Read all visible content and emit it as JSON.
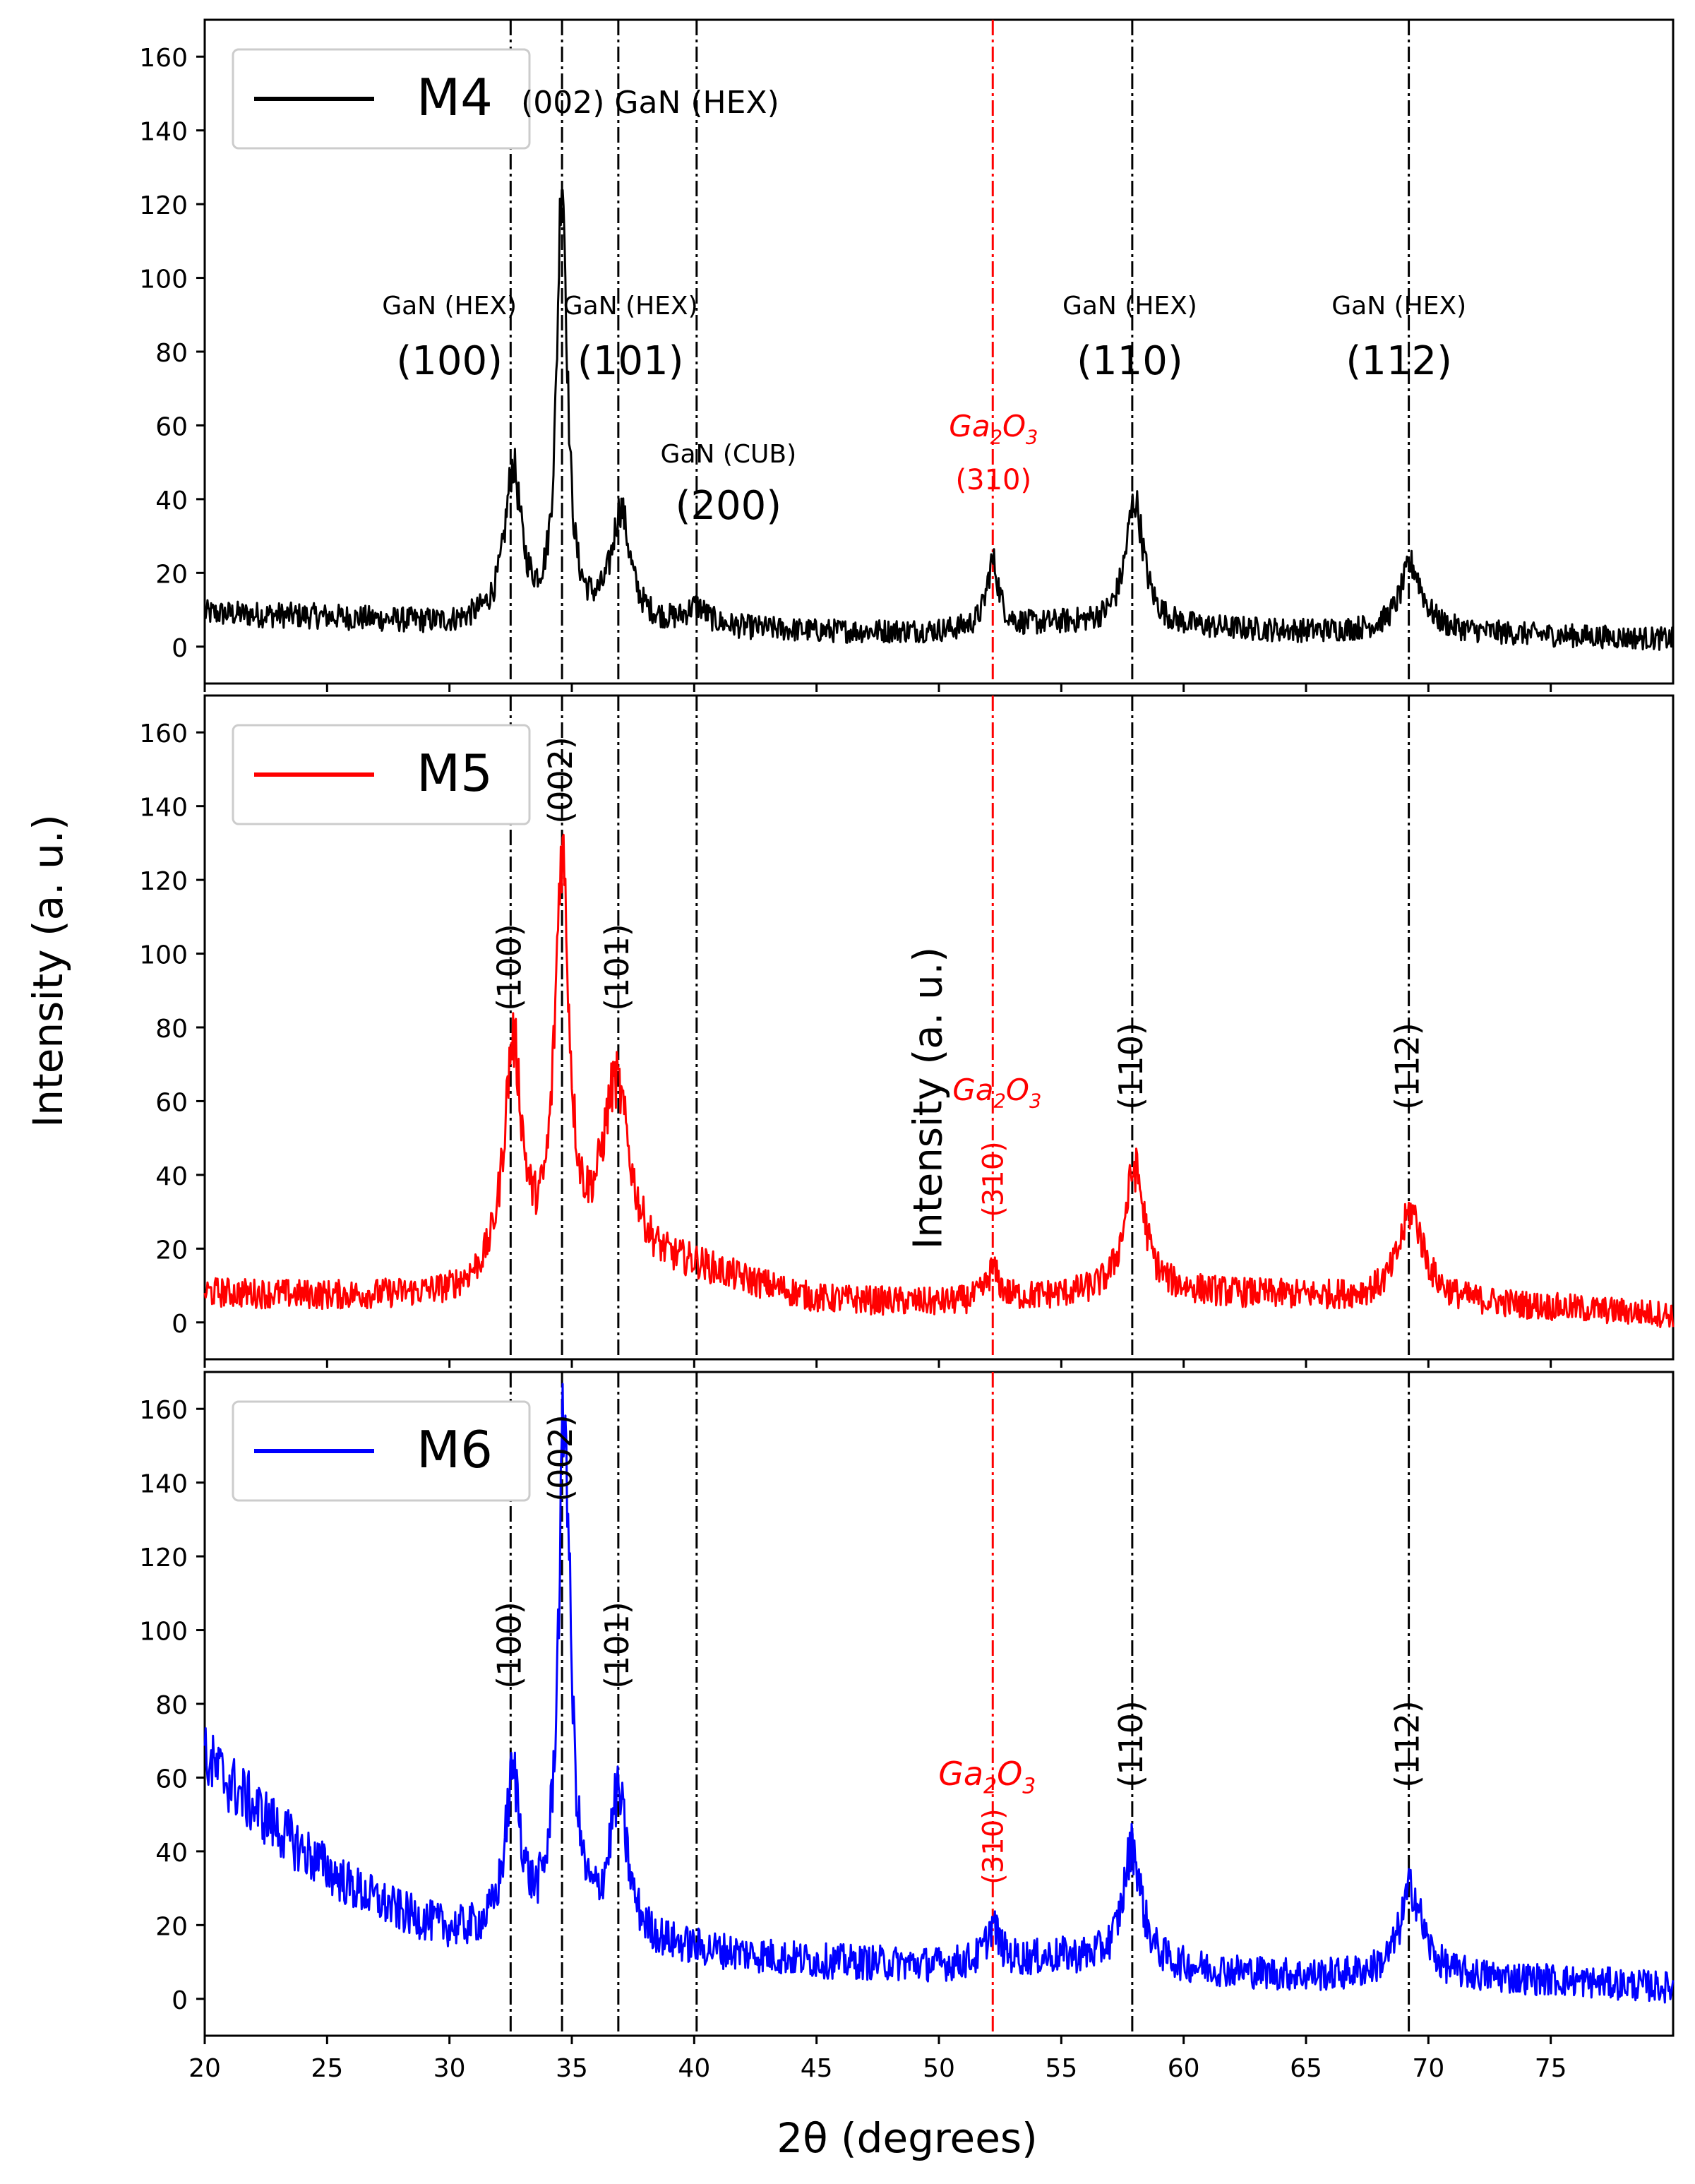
{
  "chart_data": {
    "type": "line",
    "title": "",
    "xlabel": "2θ (degrees)",
    "ylabel": "Intensity (a. u.)",
    "stray_ylabel": "Intensity (a. u.)",
    "xlim": [
      20,
      80
    ],
    "ylim": [
      -10,
      170
    ],
    "xticks": [
      20,
      25,
      30,
      35,
      40,
      45,
      50,
      55,
      60,
      65,
      70,
      75
    ],
    "yticks": [
      0,
      20,
      40,
      60,
      80,
      100,
      120,
      140,
      160
    ],
    "reference_lines": [
      {
        "x": 32.5,
        "color": "#000000"
      },
      {
        "x": 34.6,
        "color": "#000000"
      },
      {
        "x": 36.9,
        "color": "#000000"
      },
      {
        "x": 40.1,
        "color": "#000000"
      },
      {
        "x": 52.2,
        "color": "#ff0000"
      },
      {
        "x": 57.9,
        "color": "#000000"
      },
      {
        "x": 69.2,
        "color": "#000000"
      }
    ],
    "series": [
      {
        "name": "M4",
        "color": "#000000",
        "baseline": [
          [
            20,
            9
          ],
          [
            25,
            8
          ],
          [
            30,
            6
          ],
          [
            32,
            7
          ],
          [
            45,
            4
          ],
          [
            50,
            4
          ],
          [
            55,
            6
          ],
          [
            60,
            5
          ],
          [
            65,
            4
          ],
          [
            70,
            4
          ],
          [
            75,
            3
          ],
          [
            80,
            2
          ]
        ],
        "noise": 3,
        "peaks": [
          {
            "x": 32.6,
            "height": 40,
            "width": 0.4
          },
          {
            "x": 34.6,
            "height": 120,
            "width": 0.25
          },
          {
            "x": 37.0,
            "height": 30,
            "width": 0.45
          },
          {
            "x": 40.1,
            "height": 5,
            "width": 0.5
          },
          {
            "x": 52.2,
            "height": 18,
            "width": 0.3
          },
          {
            "x": 58.0,
            "height": 34,
            "width": 0.45
          },
          {
            "x": 69.3,
            "height": 18,
            "width": 0.55
          }
        ],
        "annotations": [
          {
            "line1": "GaN (HEX)",
            "line2": "(100)",
            "x": 30.0,
            "color": "#000000"
          },
          {
            "line1": "(002) GaN (HEX)",
            "line2": "",
            "x": 38.2,
            "color": "#000000"
          },
          {
            "line1": "GaN (HEX)",
            "line2": "(101)",
            "x": 37.4,
            "color": "#000000"
          },
          {
            "line1": "GaN (CUB)",
            "line2": "(200)",
            "x": 41.4,
            "color": "#000000"
          },
          {
            "line1": "Ga",
            "line2": "(310)",
            "x": 52.0,
            "color": "#ff0000"
          },
          {
            "line1": "GaN (HEX)",
            "line2": "(110)",
            "x": 57.8,
            "color": "#000000"
          },
          {
            "line1": "GaN (HEX)",
            "line2": "(112)",
            "x": 68.8,
            "color": "#000000"
          }
        ]
      },
      {
        "name": "M5",
        "color": "#ff0000",
        "baseline": [
          [
            20,
            8
          ],
          [
            25,
            7
          ],
          [
            30,
            7
          ],
          [
            32,
            10
          ],
          [
            40,
            14
          ],
          [
            45,
            6
          ],
          [
            50,
            5
          ],
          [
            55,
            7
          ],
          [
            60,
            8
          ],
          [
            65,
            7
          ],
          [
            70,
            6
          ],
          [
            75,
            4
          ],
          [
            80,
            2
          ]
        ],
        "noise": 3.5,
        "peaks": [
          {
            "x": 32.6,
            "height": 62,
            "width": 0.45
          },
          {
            "x": 34.6,
            "height": 110,
            "width": 0.35
          },
          {
            "x": 36.8,
            "height": 50,
            "width": 0.7
          },
          {
            "x": 52.2,
            "height": 8,
            "width": 0.3
          },
          {
            "x": 58.0,
            "height": 34,
            "width": 0.5
          },
          {
            "x": 69.3,
            "height": 24,
            "width": 0.6
          }
        ],
        "labels": [
          {
            "text": "(100)",
            "x": 32.5
          },
          {
            "text": "(002)",
            "x": 34.6
          },
          {
            "text": "(101)",
            "x": 36.9
          },
          {
            "text": "(110)",
            "x": 57.9
          },
          {
            "text": "(112)",
            "x": 69.2
          }
        ]
      },
      {
        "name": "M6",
        "color": "#0000ff",
        "baseline": [
          [
            20,
            65
          ],
          [
            22,
            52
          ],
          [
            24,
            40
          ],
          [
            26,
            30
          ],
          [
            28,
            23
          ],
          [
            30,
            18
          ],
          [
            32,
            16
          ],
          [
            35,
            16
          ],
          [
            40,
            13
          ],
          [
            45,
            10
          ],
          [
            50,
            9
          ],
          [
            55,
            11
          ],
          [
            60,
            8
          ],
          [
            65,
            6
          ],
          [
            70,
            6
          ],
          [
            75,
            5
          ],
          [
            80,
            3
          ]
        ],
        "noise": 4,
        "peaks": [
          {
            "x": 32.6,
            "height": 42,
            "width": 0.4
          },
          {
            "x": 34.7,
            "height": 140,
            "width": 0.3
          },
          {
            "x": 36.9,
            "height": 38,
            "width": 0.45
          },
          {
            "x": 52.2,
            "height": 10,
            "width": 0.3
          },
          {
            "x": 57.9,
            "height": 32,
            "width": 0.45
          },
          {
            "x": 69.3,
            "height": 24,
            "width": 0.55
          }
        ],
        "labels": [
          {
            "text": "(100)",
            "x": 32.5
          },
          {
            "text": "(002)",
            "x": 34.6
          },
          {
            "text": "(101)",
            "x": 36.9
          },
          {
            "text": "(110)",
            "x": 57.9
          },
          {
            "text": "(112)",
            "x": 69.2
          }
        ]
      }
    ]
  },
  "ga2o3_label": {
    "base": "Ga",
    "sub1": "2",
    "mid": "O",
    "sub2": "3",
    "miller": "(310)"
  }
}
